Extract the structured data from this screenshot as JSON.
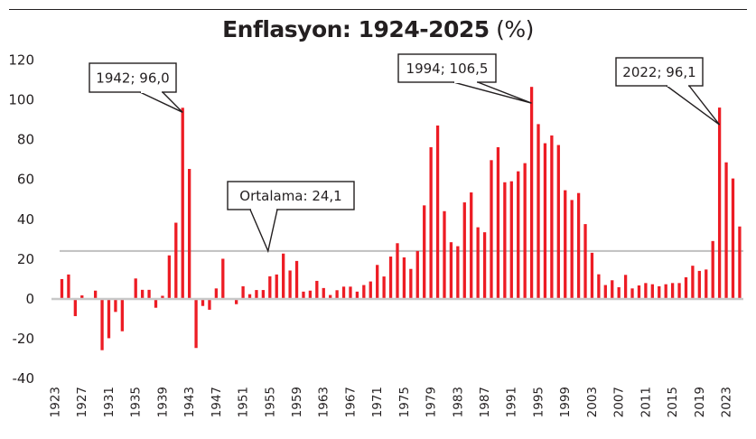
{
  "chart_data": {
    "type": "bar",
    "title": "Enflasyon: 1924-2025",
    "title_unit": "(%)",
    "xlabel": "",
    "ylabel": "",
    "ylim": [
      -40,
      120
    ],
    "y_ticks": [
      120,
      100,
      80,
      60,
      40,
      20,
      0,
      -20,
      -40
    ],
    "x_tick_labels": [
      "1923",
      "1927",
      "1931",
      "1935",
      "1939",
      "1943",
      "1947",
      "1951",
      "1955",
      "1959",
      "1963",
      "1967",
      "1971",
      "1975",
      "1979",
      "1983",
      "1987",
      "1991",
      "1995",
      "1999",
      "2003",
      "2007",
      "2011",
      "2015",
      "2019",
      "2023"
    ],
    "x_range": [
      1923,
      2025
    ],
    "bar_color": "#ed1c24",
    "average_line_color": "#c0c0c0",
    "zero_line_color": "#c8c8c8",
    "grid": false,
    "legend": "none",
    "series": [
      {
        "name": "Enflasyon (%)",
        "years": [
          1924,
          1925,
          1926,
          1927,
          1928,
          1929,
          1930,
          1931,
          1932,
          1933,
          1934,
          1935,
          1936,
          1937,
          1938,
          1939,
          1940,
          1941,
          1942,
          1943,
          1944,
          1945,
          1946,
          1947,
          1948,
          1949,
          1950,
          1951,
          1952,
          1953,
          1954,
          1955,
          1956,
          1957,
          1958,
          1959,
          1960,
          1961,
          1962,
          1963,
          1964,
          1965,
          1966,
          1967,
          1968,
          1969,
          1970,
          1971,
          1972,
          1973,
          1974,
          1975,
          1976,
          1977,
          1978,
          1979,
          1980,
          1981,
          1982,
          1983,
          1984,
          1985,
          1986,
          1987,
          1988,
          1989,
          1990,
          1991,
          1992,
          1993,
          1994,
          1995,
          1996,
          1997,
          1998,
          1999,
          2000,
          2001,
          2002,
          2003,
          2004,
          2005,
          2006,
          2007,
          2008,
          2009,
          2010,
          2011,
          2012,
          2013,
          2014,
          2015,
          2016,
          2017,
          2018,
          2019,
          2020,
          2021,
          2022,
          2023,
          2024,
          2025
        ],
        "values": [
          10.0,
          12.3,
          -8.6,
          1.8,
          0.0,
          4.2,
          -25.7,
          -19.7,
          -6.5,
          -16.2,
          0.0,
          10.3,
          4.6,
          4.6,
          -4.4,
          1.6,
          21.9,
          38.3,
          96.0,
          65.3,
          -24.6,
          -3.5,
          -5.4,
          5.3,
          20.2,
          0.0,
          -2.6,
          6.4,
          2.4,
          4.5,
          4.5,
          11.4,
          12.3,
          22.8,
          14.3,
          19.1,
          3.7,
          4.2,
          9.1,
          5.5,
          2.0,
          4.4,
          6.2,
          6.2,
          3.7,
          7.0,
          8.8,
          17.1,
          11.3,
          21.3,
          28.0,
          20.9,
          15.1,
          24.1,
          47.0,
          76.2,
          87.1,
          44.1,
          28.5,
          26.5,
          48.5,
          53.5,
          36.0,
          33.5,
          69.7,
          76.2,
          58.6,
          59.1,
          64.1,
          68.2,
          106.5,
          87.8,
          78.2,
          82.1,
          77.3,
          54.6,
          49.7,
          53.2,
          37.6,
          23.2,
          12.4,
          7.0,
          9.4,
          5.9,
          12.1,
          5.3,
          6.8,
          8.0,
          7.4,
          6.4,
          7.4,
          8.0,
          8.0,
          10.9,
          16.7,
          14.1,
          14.8,
          29.1,
          96.1,
          68.6,
          60.5,
          36.4
        ]
      }
    ],
    "average": {
      "value": 24.1,
      "label": "Ortalama:  24,1",
      "anchor_year": 1955
    },
    "annotations": [
      {
        "year": 1942,
        "value": 96.0,
        "label": "1942; 96,0"
      },
      {
        "year": 1994,
        "value": 106.5,
        "label": "1994; 106,5"
      },
      {
        "year": 2022,
        "value": 96.1,
        "label": "2022; 96,1"
      }
    ]
  }
}
